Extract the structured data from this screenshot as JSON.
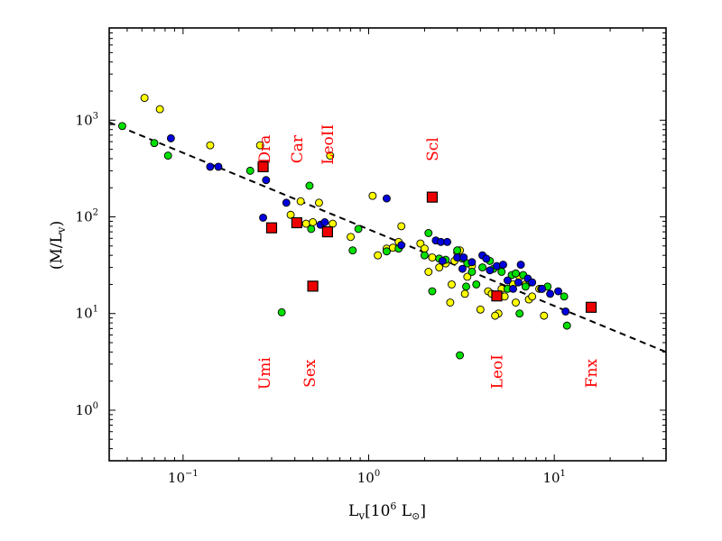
{
  "chart_data": {
    "type": "scatter",
    "title": "",
    "xlabel": "L",
    "xlabel_sub": "v",
    "xlabel_unit": "[10",
    "xlabel_unit_exp": "6",
    "xlabel_unit_tail": " L",
    "xlabel_unit_sub": "⊙",
    "xlabel_unit_close": "]",
    "ylabel": "(M/L",
    "ylabel_sub": "v",
    "ylabel_close": ")",
    "xscale": "log",
    "yscale": "log",
    "xlim": [
      0.04,
      40
    ],
    "ylim": [
      0.3,
      9000
    ],
    "grid": false,
    "x_ticks": [
      {
        "value": 0.1,
        "base": "10",
        "exp": "−1"
      },
      {
        "value": 1,
        "base": "10",
        "exp": "0"
      },
      {
        "value": 10,
        "base": "10",
        "exp": "1"
      }
    ],
    "y_ticks": [
      {
        "value": 1,
        "base": "10",
        "exp": "0"
      },
      {
        "value": 10,
        "base": "10",
        "exp": "1"
      },
      {
        "value": 100,
        "base": "10",
        "exp": "2"
      },
      {
        "value": 1000,
        "base": "10",
        "exp": "3"
      }
    ],
    "fit_line": {
      "style": "dashed",
      "color": "#000000",
      "points": [
        [
          0.04,
          950
        ],
        [
          40,
          4
        ]
      ]
    },
    "colors": {
      "yellow": "#ffff00",
      "green": "#00e000",
      "blue": "#0000dd",
      "red": "#ee0000",
      "label": "#ff0000",
      "edge": "#000000"
    },
    "series": [
      {
        "color_key": "yellow",
        "marker": "circle",
        "points": [
          [
            0.062,
            1700
          ],
          [
            0.075,
            1300
          ],
          [
            0.14,
            550
          ],
          [
            0.26,
            550
          ],
          [
            0.38,
            105
          ],
          [
            0.43,
            145
          ],
          [
            0.46,
            85
          ],
          [
            0.5,
            88
          ],
          [
            0.54,
            140
          ],
          [
            0.62,
            430
          ],
          [
            0.64,
            85
          ],
          [
            0.8,
            62
          ],
          [
            1.05,
            165
          ],
          [
            1.12,
            40
          ],
          [
            1.25,
            47
          ],
          [
            1.35,
            48
          ],
          [
            1.45,
            55
          ],
          [
            1.5,
            80
          ],
          [
            1.9,
            53
          ],
          [
            2.0,
            47
          ],
          [
            2.2,
            38
          ],
          [
            2.4,
            30
          ],
          [
            2.6,
            33
          ],
          [
            2.9,
            35
          ],
          [
            3.0,
            43
          ],
          [
            3.1,
            45
          ],
          [
            3.4,
            24
          ],
          [
            3.3,
            16
          ],
          [
            4.0,
            11
          ],
          [
            4.4,
            17
          ],
          [
            4.6,
            16
          ],
          [
            5.0,
            10
          ],
          [
            5.4,
            15
          ],
          [
            6.0,
            20
          ],
          [
            6.2,
            13
          ],
          [
            6.5,
            24
          ],
          [
            7.0,
            20
          ],
          [
            7.3,
            14
          ],
          [
            7.6,
            15
          ],
          [
            8.3,
            18
          ],
          [
            8.8,
            9.5
          ],
          [
            2.8,
            20
          ],
          [
            2.75,
            13
          ],
          [
            4.8,
            9.5
          ],
          [
            3.6,
            31
          ],
          [
            5.2,
            18
          ],
          [
            2.1,
            27
          ]
        ]
      },
      {
        "color_key": "green",
        "marker": "circle",
        "points": [
          [
            0.047,
            870
          ],
          [
            0.07,
            580
          ],
          [
            0.083,
            430
          ],
          [
            0.23,
            300
          ],
          [
            0.48,
            210
          ],
          [
            0.49,
            75
          ],
          [
            0.34,
            10.3
          ],
          [
            0.82,
            45
          ],
          [
            0.88,
            75
          ],
          [
            1.25,
            44
          ],
          [
            1.45,
            47
          ],
          [
            2.0,
            40
          ],
          [
            2.1,
            68
          ],
          [
            2.2,
            17
          ],
          [
            2.4,
            37
          ],
          [
            2.6,
            36
          ],
          [
            3.0,
            45
          ],
          [
            3.2,
            37
          ],
          [
            3.35,
            19
          ],
          [
            3.1,
            3.7
          ],
          [
            3.4,
            33
          ],
          [
            3.8,
            20
          ],
          [
            4.1,
            30
          ],
          [
            4.5,
            35
          ],
          [
            4.7,
            29
          ],
          [
            5.2,
            27
          ],
          [
            5.6,
            18
          ],
          [
            5.9,
            25
          ],
          [
            6.2,
            26
          ],
          [
            6.5,
            10
          ],
          [
            6.8,
            25
          ],
          [
            7.4,
            21
          ],
          [
            8.5,
            18
          ],
          [
            9.2,
            19
          ],
          [
            11.3,
            15
          ],
          [
            11.7,
            7.5
          ],
          [
            3.6,
            27
          ],
          [
            7.0,
            19
          ]
        ]
      },
      {
        "color_key": "blue",
        "marker": "circle",
        "points": [
          [
            0.086,
            650
          ],
          [
            0.14,
            330
          ],
          [
            0.155,
            330
          ],
          [
            0.28,
            240
          ],
          [
            0.27,
            98
          ],
          [
            0.36,
            140
          ],
          [
            0.55,
            83
          ],
          [
            0.58,
            88
          ],
          [
            1.25,
            155
          ],
          [
            1.5,
            51
          ],
          [
            2.3,
            57
          ],
          [
            2.45,
            55
          ],
          [
            2.65,
            55
          ],
          [
            2.5,
            35
          ],
          [
            3.0,
            38
          ],
          [
            3.2,
            29
          ],
          [
            3.6,
            34
          ],
          [
            4.1,
            40
          ],
          [
            4.5,
            28
          ],
          [
            4.9,
            31
          ],
          [
            5.3,
            32
          ],
          [
            5.6,
            22
          ],
          [
            6.0,
            18
          ],
          [
            6.6,
            32
          ],
          [
            7.2,
            23
          ],
          [
            7.6,
            21
          ],
          [
            8.6,
            18
          ],
          [
            9.5,
            16
          ],
          [
            10.5,
            17
          ],
          [
            11.5,
            10.5
          ],
          [
            3.25,
            38
          ],
          [
            4.3,
            37
          ],
          [
            6.4,
            21
          ]
        ]
      },
      {
        "color_key": "red",
        "marker": "square",
        "points": [
          [
            0.27,
            330
          ],
          [
            0.3,
            77
          ],
          [
            0.41,
            87
          ],
          [
            0.5,
            19.2
          ],
          [
            0.6,
            70
          ],
          [
            2.2,
            160
          ],
          [
            4.9,
            15.2
          ],
          [
            15.8,
            11.6
          ]
        ]
      }
    ],
    "annotations": [
      {
        "text": "Dra",
        "x": 0.275,
        "y": 500
      },
      {
        "text": "Car",
        "x": 0.41,
        "y": 500
      },
      {
        "text": "LeoII",
        "x": 0.6,
        "y": 560
      },
      {
        "text": "Scl",
        "x": 2.2,
        "y": 500
      },
      {
        "text": "Umi",
        "x": 0.275,
        "y": 2.4
      },
      {
        "text": "Sex",
        "x": 0.48,
        "y": 2.4
      },
      {
        "text": "LeoI",
        "x": 4.9,
        "y": 2.5
      },
      {
        "text": "Fnx",
        "x": 15.8,
        "y": 2.4
      }
    ]
  }
}
